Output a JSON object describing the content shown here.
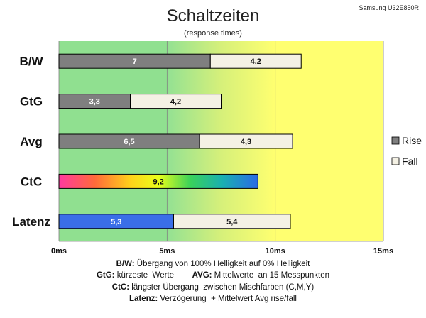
{
  "model": "Samsung U32E850R",
  "chart_data": {
    "type": "bar",
    "orientation": "horizontal",
    "stacked": true,
    "title": "Schaltzeiten",
    "subtitle": "(response times)",
    "categories": [
      "B/W",
      "GtG",
      "Avg",
      "CtC",
      "Latenz"
    ],
    "series": [
      {
        "name": "Rise",
        "values": [
          7,
          3.3,
          6.5,
          null,
          null
        ]
      },
      {
        "name": "Fall",
        "values": [
          4.2,
          4.2,
          4.3,
          null,
          5.4
        ]
      }
    ],
    "special_bars": {
      "CtC": {
        "value": 9.2,
        "label": "9,2",
        "fill": "rainbow"
      },
      "Latenz": {
        "first": 5.3,
        "first_label": "5,3",
        "first_color": "#3a6ee8"
      }
    },
    "value_labels": [
      [
        "7",
        "4,2"
      ],
      [
        "3,3",
        "4,2"
      ],
      [
        "6,5",
        "4,3"
      ],
      [
        "9,2"
      ],
      [
        "5,3",
        "5,4"
      ]
    ],
    "xlim": [
      0,
      15
    ],
    "xticks": [
      0,
      5,
      10,
      15
    ],
    "xtick_labels": [
      "0ms",
      "5ms",
      "10ms",
      "15ms"
    ],
    "legend": {
      "position": "right",
      "entries": [
        {
          "label": "Rise",
          "color": "#7f7f7f"
        },
        {
          "label": "Fall",
          "color": "#f4f1e4"
        }
      ]
    },
    "background_zones": [
      {
        "from": 0,
        "to": 5,
        "color": "#90e090"
      },
      {
        "from": 5,
        "to": 10,
        "color": "gradient-green-yellow"
      },
      {
        "from": 10,
        "to": 15,
        "color": "#ffff70"
      }
    ],
    "grid": true
  },
  "notes": [
    {
      "key": "B/W:",
      "text": " Übergang von 100% Helligkeit auf 0% Helligkeit"
    },
    {
      "key": "GtG:",
      "text": " kürzeste  Werte        ",
      "key2": "AVG:",
      "text2": " Mittelwerte  an 15 Messpunkten"
    },
    {
      "key": "CtC:",
      "text": " längster Übergang  zwischen Mischfarben (C,M,Y)"
    },
    {
      "key": "Latenz:",
      "text": " Verzögerung  + Mittelwert Avg rise/fall"
    }
  ],
  "colors": {
    "rise": "#7f7f7f",
    "fall": "#f4f1e4",
    "latenz": "#3a6ee8",
    "grid": "#808080"
  }
}
